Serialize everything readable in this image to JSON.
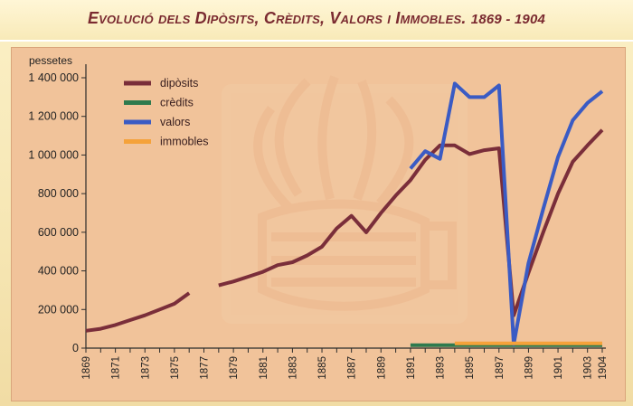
{
  "title": {
    "main": "Evolució dels Dipòsits, Crèdits, Valors i Immobles.",
    "years": "1869 - 1904"
  },
  "chart_data": {
    "type": "line",
    "title": "Evolució dels Dipòsits, Crèdits, Valors i Immobles. 1869 - 1904",
    "ylabel": "pessetes",
    "xlabel": "",
    "xlim": [
      1869,
      1904
    ],
    "ylim": [
      0,
      1400000
    ],
    "y_ticks": [
      0,
      200000,
      400000,
      600000,
      800000,
      1000000,
      1200000,
      1400000
    ],
    "y_tick_labels": [
      "0",
      "200 000",
      "400 000",
      "600 000",
      "800 000",
      "1 000 000",
      "1 200 000",
      "1 400 000"
    ],
    "x_ticks": [
      1869,
      1871,
      1873,
      1875,
      1877,
      1879,
      1881,
      1883,
      1885,
      1887,
      1889,
      1891,
      1893,
      1895,
      1897,
      1899,
      1901,
      1903,
      1904
    ],
    "grid": false,
    "legend_position": "top-left",
    "series": [
      {
        "name": "dipòsits",
        "color": "#7a2e3a",
        "segments": [
          [
            [
              1869,
              90000
            ],
            [
              1870,
              100000
            ],
            [
              1871,
              120000
            ],
            [
              1872,
              145000
            ],
            [
              1873,
              170000
            ],
            [
              1874,
              200000
            ],
            [
              1875,
              230000
            ],
            [
              1876,
              285000
            ]
          ],
          [
            [
              1878,
              325000
            ],
            [
              1879,
              345000
            ],
            [
              1880,
              370000
            ],
            [
              1881,
              395000
            ],
            [
              1882,
              430000
            ],
            [
              1883,
              445000
            ],
            [
              1884,
              480000
            ],
            [
              1885,
              525000
            ],
            [
              1886,
              620000
            ],
            [
              1887,
              685000
            ],
            [
              1888,
              600000
            ],
            [
              1889,
              700000
            ],
            [
              1890,
              790000
            ],
            [
              1891,
              870000
            ],
            [
              1892,
              975000
            ],
            [
              1893,
              1050000
            ],
            [
              1894,
              1050000
            ],
            [
              1895,
              1005000
            ],
            [
              1896,
              1025000
            ],
            [
              1897,
              1035000
            ],
            [
              1898,
              170000
            ],
            [
              1899,
              390000
            ],
            [
              1900,
              600000
            ],
            [
              1901,
              800000
            ],
            [
              1902,
              965000
            ],
            [
              1903,
              1050000
            ],
            [
              1904,
              1130000
            ]
          ]
        ]
      },
      {
        "name": "crèdits",
        "color": "#2e7a4e",
        "segments": [
          [
            [
              1891,
              15000
            ],
            [
              1904,
              15000
            ]
          ]
        ]
      },
      {
        "name": "valors",
        "color": "#3a5bc4",
        "segments": [
          [
            [
              1891,
              930000
            ],
            [
              1892,
              1020000
            ],
            [
              1893,
              980000
            ],
            [
              1894,
              1370000
            ],
            [
              1895,
              1300000
            ],
            [
              1896,
              1300000
            ],
            [
              1897,
              1360000
            ],
            [
              1898,
              20000
            ],
            [
              1899,
              440000
            ],
            [
              1900,
              720000
            ],
            [
              1901,
              990000
            ],
            [
              1902,
              1180000
            ],
            [
              1903,
              1270000
            ],
            [
              1904,
              1330000
            ]
          ]
        ]
      },
      {
        "name": "immobles",
        "color": "#f5a23a",
        "segments": [
          [
            [
              1894,
              25000
            ],
            [
              1904,
              25000
            ]
          ]
        ]
      }
    ]
  }
}
